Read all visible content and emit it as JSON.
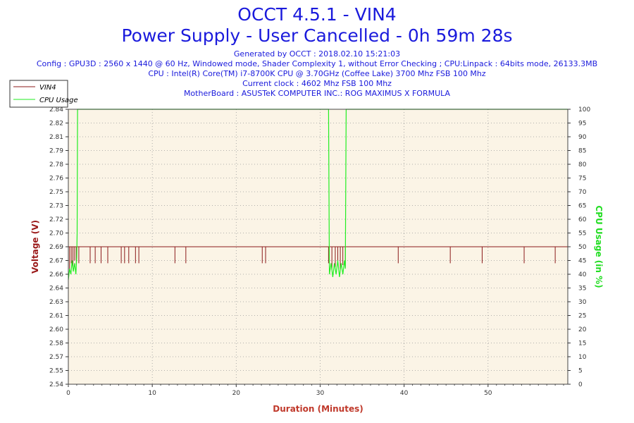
{
  "header": {
    "title": "OCCT 4.5.1 - VIN4",
    "subtitle": "Power Supply - User Cancelled - 0h 59m 28s",
    "info_lines": [
      "Generated by OCCT : 2018.02.10 15:21:03",
      "Config : GPU3D : 2560 x 1440 @ 60 Hz, Windowed mode, Shader Complexity 1, without Error Checking ; CPU:Linpack : 64bits mode, 26133.3MB",
      "CPU : Intel(R) Core(TM) i7-8700K CPU @ 3.70GHz (Coffee Lake) 3700 Mhz FSB 100 Mhz",
      "Current clock : 4602 Mhz FSB 100 Mhz",
      "MotherBoard : ASUSTeK COMPUTER INC.: ROG MAXIMUS X FORMULA"
    ]
  },
  "colors": {
    "vin4": "#8b1a1a",
    "cpu": "#22ee22",
    "plot_bg": "#fbf4e6",
    "grid": "#999999"
  },
  "chart_data": {
    "type": "line",
    "xlabel": "Duration (Minutes)",
    "ylabel_left": "Voltage (V)",
    "ylabel_right": "CPU Usage (in %)",
    "xlim": [
      0,
      59.5
    ],
    "ylim_left": [
      2.54,
      2.84
    ],
    "ylim_right": [
      0,
      100
    ],
    "x_ticks": [
      "0",
      "10",
      "20",
      "30",
      "40",
      "50"
    ],
    "y_ticks_left": [
      "2.54",
      "2.55",
      "2.57",
      "2.58",
      "2.60",
      "2.61",
      "2.63",
      "2.64",
      "2.66",
      "2.67",
      "2.69",
      "2.70",
      "2.72",
      "2.73",
      "2.75",
      "2.76",
      "2.78",
      "2.79",
      "2.81",
      "2.82",
      "2.84"
    ],
    "y_ticks_right": [
      "0",
      "5",
      "10",
      "15",
      "20",
      "25",
      "30",
      "35",
      "40",
      "45",
      "50",
      "55",
      "60",
      "65",
      "70",
      "75",
      "80",
      "85",
      "90",
      "95",
      "100"
    ],
    "grid": true,
    "legend_position": "top-left",
    "series": [
      {
        "name": "VIN4",
        "axis": "left",
        "baseline": 2.69,
        "dips": [
          {
            "x": 0.15,
            "y": 2.665
          },
          {
            "x": 0.35,
            "y": 2.672
          },
          {
            "x": 0.55,
            "y": 2.668
          },
          {
            "x": 0.75,
            "y": 2.675
          },
          {
            "x": 0.95,
            "y": 2.67
          },
          {
            "x": 1.25,
            "y": 2.672
          },
          {
            "x": 2.6,
            "y": 2.672
          },
          {
            "x": 3.2,
            "y": 2.672
          },
          {
            "x": 3.9,
            "y": 2.672
          },
          {
            "x": 4.7,
            "y": 2.672
          },
          {
            "x": 6.3,
            "y": 2.672
          },
          {
            "x": 6.7,
            "y": 2.672
          },
          {
            "x": 7.2,
            "y": 2.672
          },
          {
            "x": 8.0,
            "y": 2.672
          },
          {
            "x": 8.4,
            "y": 2.672
          },
          {
            "x": 12.7,
            "y": 2.672
          },
          {
            "x": 14.0,
            "y": 2.672
          },
          {
            "x": 23.1,
            "y": 2.672
          },
          {
            "x": 23.5,
            "y": 2.672
          },
          {
            "x": 31.0,
            "y": 2.672
          },
          {
            "x": 31.4,
            "y": 2.665
          },
          {
            "x": 31.8,
            "y": 2.668
          },
          {
            "x": 32.1,
            "y": 2.672
          },
          {
            "x": 32.4,
            "y": 2.666
          },
          {
            "x": 32.7,
            "y": 2.67
          },
          {
            "x": 33.0,
            "y": 2.668
          },
          {
            "x": 39.3,
            "y": 2.672
          },
          {
            "x": 45.5,
            "y": 2.672
          },
          {
            "x": 49.3,
            "y": 2.672
          },
          {
            "x": 54.3,
            "y": 2.672
          },
          {
            "x": 58.0,
            "y": 2.672
          }
        ]
      },
      {
        "name": "CPU Usage",
        "axis": "right",
        "points": [
          [
            0,
            38
          ],
          [
            0.15,
            42
          ],
          [
            0.3,
            40
          ],
          [
            0.45,
            45
          ],
          [
            0.6,
            41
          ],
          [
            0.75,
            44
          ],
          [
            0.9,
            40
          ],
          [
            1.0,
            46
          ],
          [
            1.05,
            55
          ],
          [
            1.1,
            100
          ],
          [
            31.0,
            100
          ],
          [
            31.1,
            40
          ],
          [
            31.3,
            44
          ],
          [
            31.5,
            39
          ],
          [
            31.7,
            44
          ],
          [
            31.9,
            40
          ],
          [
            32.1,
            45
          ],
          [
            32.3,
            39
          ],
          [
            32.5,
            44
          ],
          [
            32.7,
            40
          ],
          [
            32.9,
            45
          ],
          [
            33.0,
            42
          ],
          [
            33.1,
            100
          ],
          [
            59.5,
            100
          ]
        ]
      }
    ]
  }
}
